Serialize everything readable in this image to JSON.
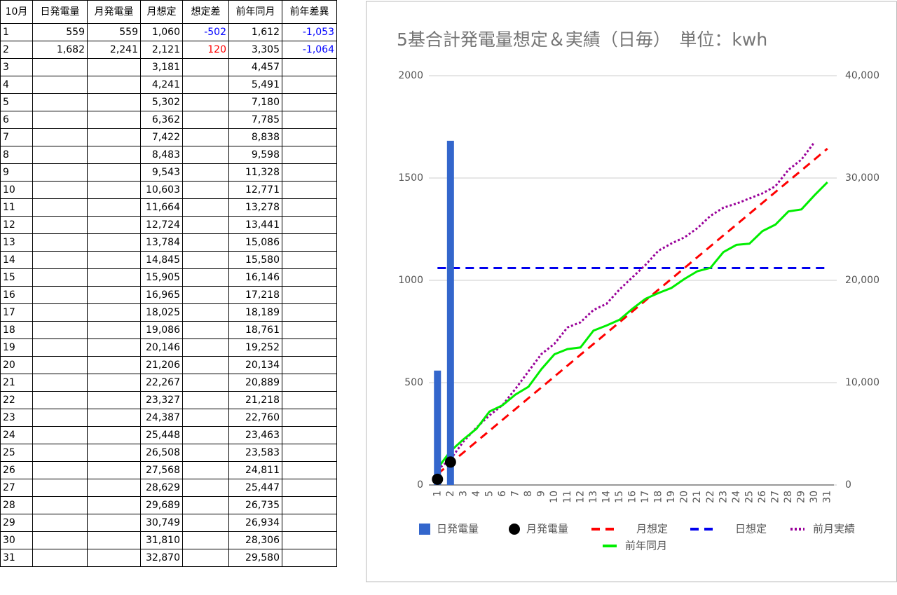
{
  "table": {
    "header": [
      "10月",
      "日発電量",
      "月発電量",
      "月想定",
      "想定差",
      "前年同月",
      "前年差異"
    ],
    "rows": [
      [
        "1",
        "559",
        "559",
        "1,060",
        "-502",
        "1,612",
        "-1,053"
      ],
      [
        "2",
        "1,682",
        "2,241",
        "2,121",
        "120",
        "3,305",
        "-1,064"
      ],
      [
        "3",
        null,
        null,
        "3,181",
        null,
        "4,457",
        null
      ],
      [
        "4",
        null,
        null,
        "4,241",
        null,
        "5,491",
        null
      ],
      [
        "5",
        null,
        null,
        "5,302",
        null,
        "7,180",
        null
      ],
      [
        "6",
        null,
        null,
        "6,362",
        null,
        "7,785",
        null
      ],
      [
        "7",
        null,
        null,
        "7,422",
        null,
        "8,838",
        null
      ],
      [
        "8",
        null,
        null,
        "8,483",
        null,
        "9,598",
        null
      ],
      [
        "9",
        null,
        null,
        "9,543",
        null,
        "11,328",
        null
      ],
      [
        "10",
        null,
        null,
        "10,603",
        null,
        "12,771",
        null
      ],
      [
        "11",
        null,
        null,
        "11,664",
        null,
        "13,278",
        null
      ],
      [
        "12",
        null,
        null,
        "12,724",
        null,
        "13,441",
        null
      ],
      [
        "13",
        null,
        null,
        "13,784",
        null,
        "15,086",
        null
      ],
      [
        "14",
        null,
        null,
        "14,845",
        null,
        "15,580",
        null
      ],
      [
        "15",
        null,
        null,
        "15,905",
        null,
        "16,146",
        null
      ],
      [
        "16",
        null,
        null,
        "16,965",
        null,
        "17,218",
        null
      ],
      [
        "17",
        null,
        null,
        "18,025",
        null,
        "18,189",
        null
      ],
      [
        "18",
        null,
        null,
        "19,086",
        null,
        "18,761",
        null
      ],
      [
        "19",
        null,
        null,
        "20,146",
        null,
        "19,252",
        null
      ],
      [
        "20",
        null,
        null,
        "21,206",
        null,
        "20,134",
        null
      ],
      [
        "21",
        null,
        null,
        "22,267",
        null,
        "20,889",
        null
      ],
      [
        "22",
        null,
        null,
        "23,327",
        null,
        "21,218",
        null
      ],
      [
        "23",
        null,
        null,
        "24,387",
        null,
        "22,760",
        null
      ],
      [
        "24",
        null,
        null,
        "25,448",
        null,
        "23,463",
        null
      ],
      [
        "25",
        null,
        null,
        "26,508",
        null,
        "23,583",
        null
      ],
      [
        "26",
        null,
        null,
        "27,568",
        null,
        "24,811",
        null
      ],
      [
        "27",
        null,
        null,
        "28,629",
        null,
        "25,447",
        null
      ],
      [
        "28",
        null,
        null,
        "29,689",
        null,
        "26,735",
        null
      ],
      [
        "29",
        null,
        null,
        "30,749",
        null,
        "26,934",
        null
      ],
      [
        "30",
        null,
        null,
        "31,810",
        null,
        "28,306",
        null
      ],
      [
        "31",
        null,
        null,
        "32,870",
        null,
        "29,580",
        null
      ]
    ]
  },
  "chart_data": {
    "type": "combo",
    "title": "5基合計発電量想定＆実績（日毎）　単位：kwh",
    "categories": [
      "1",
      "2",
      "3",
      "4",
      "5",
      "6",
      "7",
      "8",
      "9",
      "10",
      "11",
      "12",
      "13",
      "14",
      "15",
      "16",
      "17",
      "18",
      "19",
      "20",
      "21",
      "22",
      "23",
      "24",
      "25",
      "26",
      "27",
      "28",
      "29",
      "30",
      "31"
    ],
    "ylim": [
      0,
      2000
    ],
    "yticks": [
      0,
      500,
      1000,
      1500,
      2000
    ],
    "y2lim": [
      0,
      40000
    ],
    "y2ticks": [
      0,
      {
        "value": 10000,
        "label": "10,000"
      },
      {
        "value": 20000,
        "label": "20,000"
      },
      {
        "value": 30000,
        "label": "30,000"
      },
      {
        "value": 40000,
        "label": "40,000"
      }
    ],
    "grid": true,
    "legend": "bottom",
    "series": [
      {
        "name": "日発電量",
        "type": "bar",
        "color": "#3366cc",
        "axis": "y",
        "values": [
          559,
          1682,
          null,
          null,
          null,
          null,
          null,
          null,
          null,
          null,
          null,
          null,
          null,
          null,
          null,
          null,
          null,
          null,
          null,
          null,
          null,
          null,
          null,
          null,
          null,
          null,
          null,
          null,
          null,
          null,
          null
        ]
      },
      {
        "name": "月発電量",
        "type": "scatter",
        "color": "#000000",
        "axis": "y2",
        "values": [
          559,
          2241,
          null,
          null,
          null,
          null,
          null,
          null,
          null,
          null,
          null,
          null,
          null,
          null,
          null,
          null,
          null,
          null,
          null,
          null,
          null,
          null,
          null,
          null,
          null,
          null,
          null,
          null,
          null,
          null,
          null
        ]
      },
      {
        "name": "月想定",
        "type": "line",
        "dash": "dashed",
        "color": "#ff0000",
        "axis": "y2",
        "values": [
          1060,
          2121,
          3181,
          4241,
          5302,
          6362,
          7422,
          8483,
          9543,
          10603,
          11664,
          12724,
          13784,
          14845,
          15905,
          16965,
          18025,
          19086,
          20146,
          21206,
          22267,
          23327,
          24387,
          25448,
          26508,
          27568,
          28629,
          29689,
          30749,
          31810,
          32870
        ]
      },
      {
        "name": "日想定",
        "type": "line",
        "dash": "dashed",
        "color": "#0000ee",
        "axis": "y",
        "values": [
          1060,
          1060,
          1060,
          1060,
          1060,
          1060,
          1060,
          1060,
          1060,
          1060,
          1060,
          1060,
          1060,
          1060,
          1060,
          1060,
          1060,
          1060,
          1060,
          1060,
          1060,
          1060,
          1060,
          1060,
          1060,
          1060,
          1060,
          1060,
          1060,
          1060,
          1060
        ]
      },
      {
        "name": "前月実績",
        "type": "line",
        "dash": "dotted",
        "color": "#990099",
        "axis": "y2",
        "values": [
          1500,
          2500,
          4250,
          5600,
          6800,
          7800,
          9400,
          11100,
          12800,
          13800,
          15400,
          15900,
          17100,
          17700,
          19100,
          20300,
          21500,
          22900,
          23600,
          24200,
          25100,
          26300,
          27100,
          27500,
          28000,
          28500,
          29200,
          30800,
          31800,
          33500,
          null
        ]
      },
      {
        "name": "前年同月",
        "type": "line",
        "dash": "solid",
        "color": "#00ee00",
        "axis": "y2",
        "values": [
          1612,
          3305,
          4457,
          5491,
          7180,
          7785,
          8838,
          9598,
          11328,
          12771,
          13278,
          13441,
          15086,
          15580,
          16146,
          17218,
          18189,
          18761,
          19252,
          20134,
          20889,
          21218,
          22760,
          23463,
          23583,
          24811,
          25447,
          26735,
          26934,
          28306,
          29580
        ]
      }
    ]
  }
}
